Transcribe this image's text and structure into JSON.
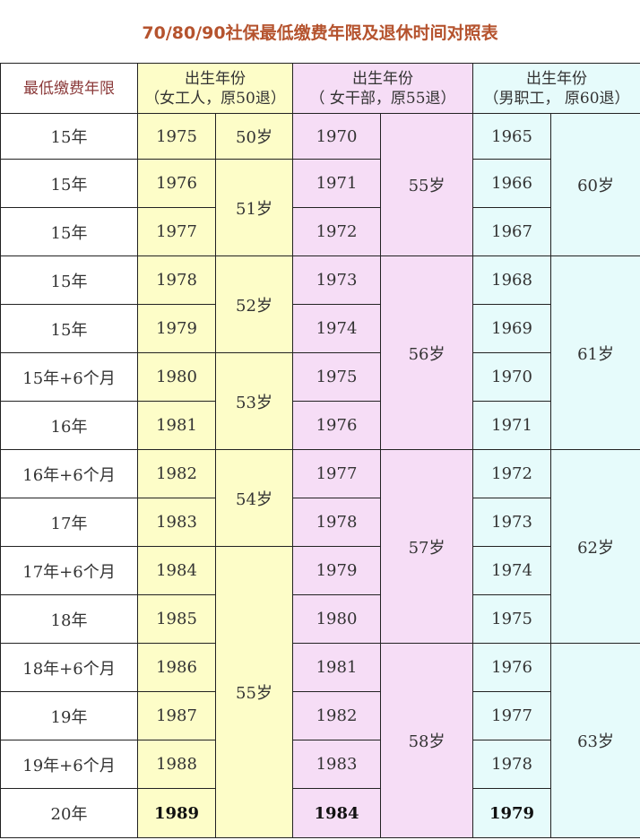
{
  "title": "70/80/90社保最低缴费年限及退休时间对照表",
  "header": {
    "years_label": "最低缴费年限",
    "groups": [
      {
        "line1": "出生年份",
        "line2": "（女工人，原50退）"
      },
      {
        "line1": "出生年份",
        "line2": "（ 女干部，原55退）"
      },
      {
        "line1": "出生年份",
        "line2": "（男职工， 原60退）"
      }
    ]
  },
  "rows": [
    {
      "years": "15年",
      "worker_birth": "1975",
      "cadre_birth": "1970",
      "male_birth": "1965"
    },
    {
      "years": "15年",
      "worker_birth": "1976",
      "cadre_birth": "1971",
      "male_birth": "1966"
    },
    {
      "years": "15年",
      "worker_birth": "1977",
      "cadre_birth": "1972",
      "male_birth": "1967"
    },
    {
      "years": "15年",
      "worker_birth": "1978",
      "cadre_birth": "1973",
      "male_birth": "1968"
    },
    {
      "years": "15年",
      "worker_birth": "1979",
      "cadre_birth": "1974",
      "male_birth": "1969"
    },
    {
      "years": "15年+6个月",
      "worker_birth": "1980",
      "cadre_birth": "1975",
      "male_birth": "1970"
    },
    {
      "years": "16年",
      "worker_birth": "1981",
      "cadre_birth": "1976",
      "male_birth": "1971"
    },
    {
      "years": "16年+6个月",
      "worker_birth": "1982",
      "cadre_birth": "1977",
      "male_birth": "1972"
    },
    {
      "years": "17年",
      "worker_birth": "1983",
      "cadre_birth": "1978",
      "male_birth": "1973"
    },
    {
      "years": "17年+6个月",
      "worker_birth": "1984",
      "cadre_birth": "1979",
      "male_birth": "1974"
    },
    {
      "years": "18年",
      "worker_birth": "1985",
      "cadre_birth": "1980",
      "male_birth": "1975"
    },
    {
      "years": "18年+6个月",
      "worker_birth": "1986",
      "cadre_birth": "1981",
      "male_birth": "1976"
    },
    {
      "years": "19年",
      "worker_birth": "1987",
      "cadre_birth": "1982",
      "male_birth": "1977"
    },
    {
      "years": "19年+6个月",
      "worker_birth": "1988",
      "cadre_birth": "1983",
      "male_birth": "1978"
    },
    {
      "years": "20年",
      "worker_birth": "1989",
      "cadre_birth": "1984",
      "male_birth": "1979"
    }
  ],
  "worker_retire": [
    "50岁",
    "51岁",
    "52岁",
    "53岁",
    "54岁",
    "55岁"
  ],
  "cadre_retire": [
    "55岁",
    "56岁",
    "57岁",
    "58岁"
  ],
  "male_retire": [
    "60岁",
    "61岁",
    "62岁",
    "63岁"
  ],
  "colors": {
    "title": "#b5532e",
    "worker_column": "#fdfdc8",
    "cadre_column": "#f6ddf6",
    "male_column": "#e6fbfb"
  }
}
